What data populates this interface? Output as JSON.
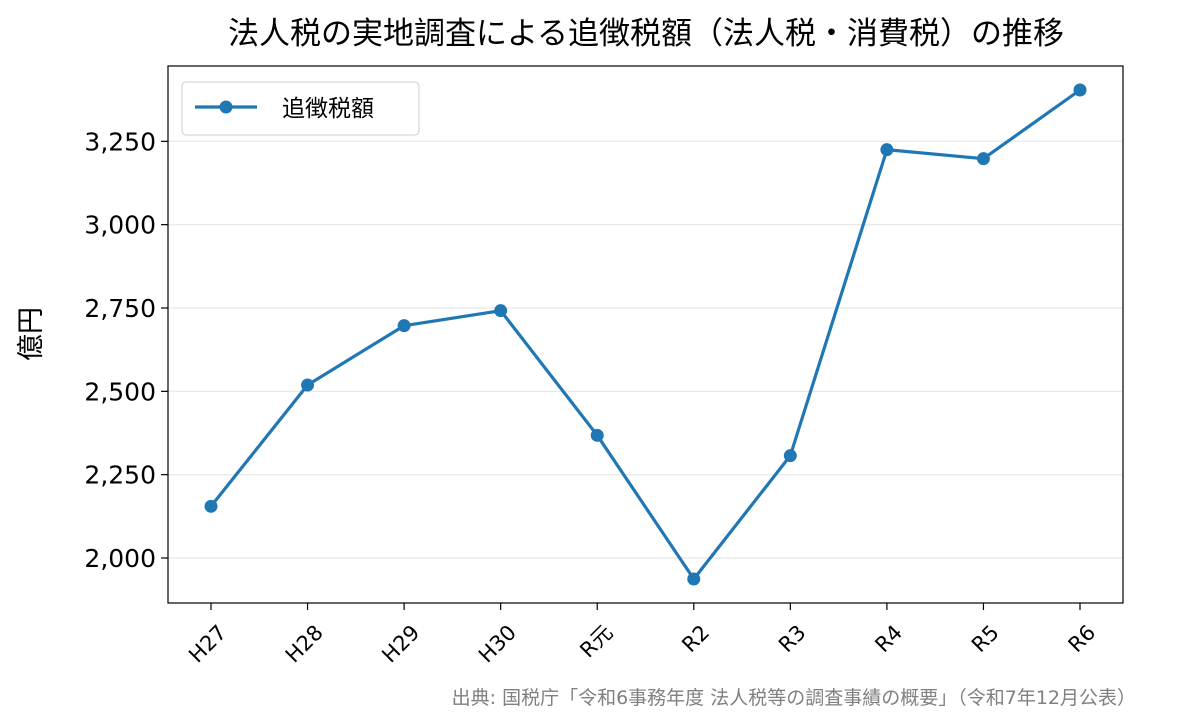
{
  "chart_data": {
    "type": "line",
    "title": "法人税の実地調査による追徴税額（法人税・消費税）の推移",
    "xlabel": "",
    "ylabel": "億円",
    "categories": [
      "H27",
      "H28",
      "H29",
      "H30",
      "R元",
      "R2",
      "R3",
      "R4",
      "R5",
      "R6"
    ],
    "series": [
      {
        "name": "追徴税額",
        "values": [
          2155,
          2519,
          2697,
          2742,
          2368,
          1937,
          2307,
          3225,
          3198,
          3404
        ],
        "color": "#1f77b4"
      }
    ],
    "ylim": [
      1865,
      3476
    ],
    "yticks": [
      2000,
      2250,
      2500,
      2750,
      3000,
      3250
    ],
    "ytick_labels": [
      "2,000",
      "2,250",
      "2,500",
      "2,750",
      "3,000",
      "3,250"
    ],
    "grid": "horizontal",
    "legend_position": "upper-left",
    "source": "出典: 国税庁「令和6事務年度 法人税等の調査事績の概要」（令和7年12月公表）",
    "colors": {
      "line": "#1f77b4",
      "grid": "#e6e6e6",
      "axis": "#000000",
      "source_text": "#808080"
    }
  }
}
